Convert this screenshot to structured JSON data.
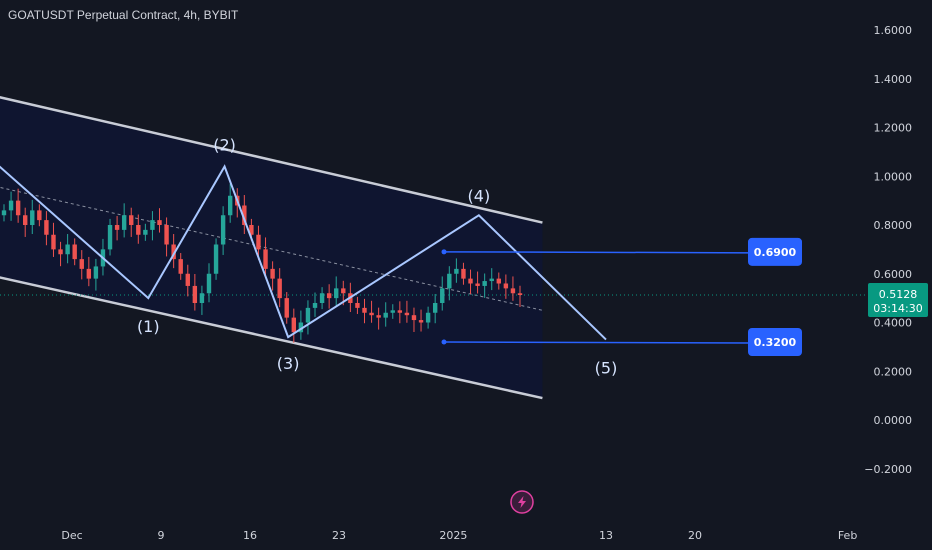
{
  "header": {
    "title": "GOATUSDT Perpetual Contract, 4h, BYBIT"
  },
  "colors": {
    "background": "#131722",
    "channel_fill": "#0f1530",
    "channel_line": "#c8ccd6",
    "wave_line": "#a9c7ff",
    "up_candle": "#26a69a",
    "down_candle": "#ef5350",
    "target_line": "#2962ff",
    "price_badge": "#089981"
  },
  "price_axis": {
    "ticks": [
      "1.6000",
      "1.4000",
      "1.2000",
      "1.0000",
      "0.8000",
      "0.6000",
      "0.4000",
      "0.2000",
      "0.0000",
      "−0.2000"
    ],
    "current_price": "0.5128",
    "countdown": "03:14:30"
  },
  "time_axis": {
    "ticks": [
      "Dec",
      "9",
      "16",
      "23",
      "2025",
      "13",
      "20",
      "Feb"
    ]
  },
  "annotations": {
    "wave_labels": [
      "(1)",
      "(2)",
      "(3)",
      "(4)",
      "(5)"
    ],
    "targets": [
      "0.6900",
      "0.3200"
    ]
  },
  "icons": {
    "flash": "lightning-bolt-icon"
  },
  "chart_data": {
    "type": "candlestick",
    "title": "GOATUSDT Perpetual Contract, 4h, BYBIT",
    "ylim": [
      -0.28,
      1.68
    ],
    "wave_points": [
      {
        "label": "start",
        "t": "2024-11-25",
        "price": 1.1
      },
      {
        "label": "(1)",
        "t": "2024-12-08",
        "price": 0.5
      },
      {
        "label": "(2)",
        "t": "2024-12-14",
        "price": 1.04
      },
      {
        "label": "(3)",
        "t": "2024-12-19",
        "price": 0.34
      },
      {
        "label": "(4)",
        "t": "2025-01-03",
        "price": 0.84
      },
      {
        "label": "(5)",
        "t": "2025-01-13",
        "price": 0.33
      }
    ],
    "channel_upper": [
      {
        "t": "2024-11-25",
        "price": 1.34
      },
      {
        "t": "2025-01-08",
        "price": 0.81
      }
    ],
    "channel_lower": [
      {
        "t": "2024-11-25",
        "price": 0.6
      },
      {
        "t": "2025-01-08",
        "price": 0.09
      }
    ],
    "channel_mid": [
      {
        "t": "2024-11-25",
        "price": 0.97
      },
      {
        "t": "2025-01-08",
        "price": 0.45
      }
    ],
    "targets": [
      0.69,
      0.32
    ],
    "current_price": 0.5128,
    "candles": [
      0.86,
      0.9,
      0.84,
      0.8,
      0.86,
      0.82,
      0.76,
      0.7,
      0.68,
      0.72,
      0.66,
      0.62,
      0.58,
      0.63,
      0.7,
      0.8,
      0.78,
      0.84,
      0.8,
      0.76,
      0.78,
      0.82,
      0.8,
      0.72,
      0.66,
      0.6,
      0.55,
      0.48,
      0.52,
      0.6,
      0.72,
      0.84,
      0.92,
      0.88,
      0.8,
      0.76,
      0.7,
      0.62,
      0.58,
      0.5,
      0.42,
      0.36,
      0.4,
      0.46,
      0.48,
      0.52,
      0.5,
      0.54,
      0.52,
      0.48,
      0.46,
      0.44,
      0.43,
      0.42,
      0.44,
      0.45,
      0.44,
      0.43,
      0.41,
      0.4,
      0.44,
      0.48,
      0.54,
      0.6,
      0.62,
      0.58,
      0.56,
      0.55,
      0.57,
      0.58,
      0.56,
      0.54,
      0.52,
      0.5128
    ]
  }
}
